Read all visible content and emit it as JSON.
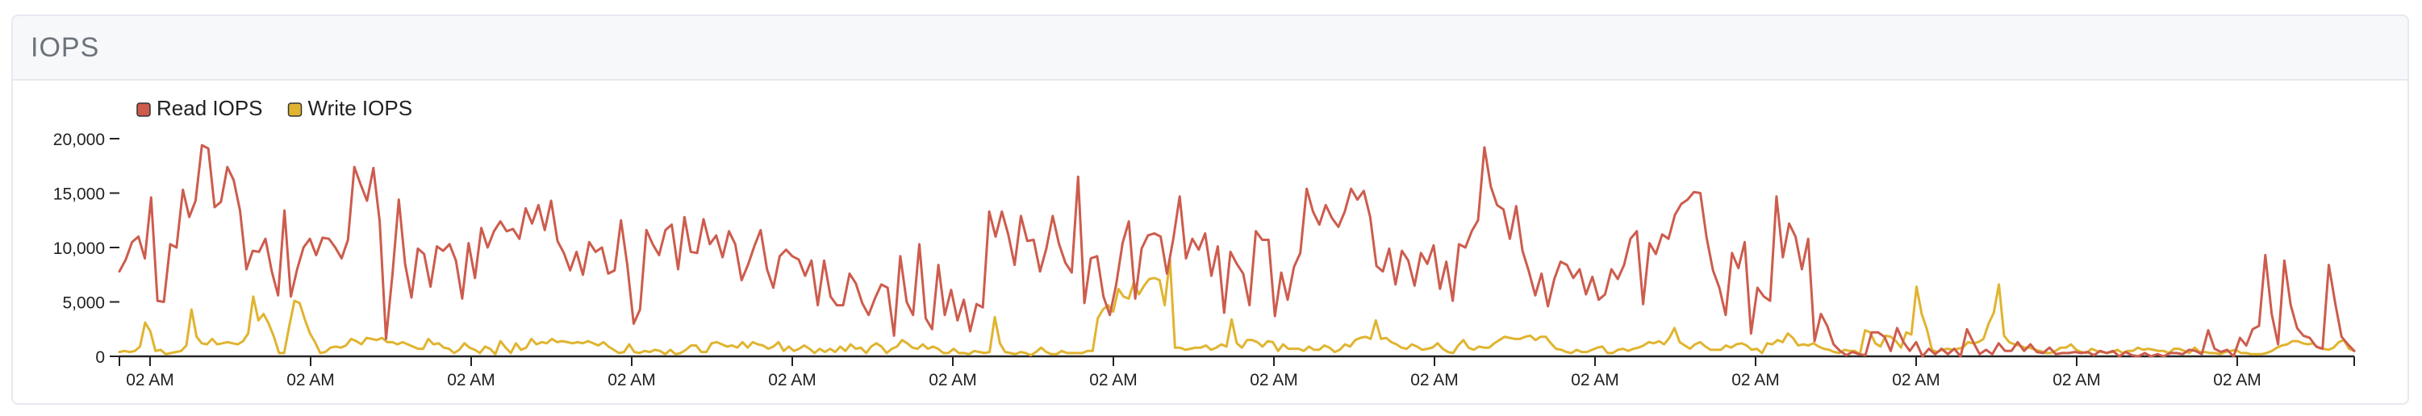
{
  "panel": {
    "title": "IOPS"
  },
  "chart_data": {
    "type": "line",
    "title": "",
    "xlabel": "",
    "ylabel": "",
    "ylim": [
      0,
      20000
    ],
    "yticks": [
      0,
      5000,
      10000,
      15000,
      20000
    ],
    "ytick_labels": [
      "0",
      "5,000",
      "10,000",
      "15,000",
      "20,000"
    ],
    "xtick_labels": [
      "02 AM",
      "02 AM",
      "02 AM",
      "02 AM",
      "02 AM",
      "02 AM",
      "02 AM",
      "02 AM",
      "02 AM",
      "02 AM",
      "02 AM",
      "02 AM",
      "02 AM",
      "02 AM"
    ],
    "legend_position": "top-left",
    "grid": false,
    "series": [
      {
        "name": "Read IOPS",
        "color": "#cd5c4d",
        "values": [
          7800,
          8900,
          10500,
          11000,
          9000,
          14600,
          5100,
          5000,
          10300,
          10000,
          15300,
          12800,
          14300,
          19400,
          19100,
          13700,
          14200,
          17400,
          16200,
          13400,
          8000,
          9700,
          9600,
          10800,
          7800,
          5600,
          13400,
          5500,
          8000,
          10000,
          10800,
          9300,
          10900,
          10800,
          10000,
          9000,
          10700,
          17400,
          15800,
          14300,
          17300,
          12400,
          1600,
          7500,
          14400,
          8500,
          5400,
          9900,
          9400,
          6400,
          10100,
          9700,
          10300,
          8800,
          5300,
          10400,
          7200,
          11800,
          10000,
          11500,
          12400,
          11500,
          11700,
          10800,
          13600,
          12200,
          13900,
          11600,
          14300,
          10600,
          9500,
          7900,
          9600,
          7500,
          10500,
          9600,
          10000,
          7600,
          7900,
          12500,
          8400,
          3000,
          4300,
          11600,
          10300,
          9300,
          11600,
          12100,
          8000,
          12800,
          9600,
          9500,
          12600,
          10300,
          11100,
          9100,
          11500,
          10300,
          7000,
          8400,
          10100,
          11600,
          8000,
          6300,
          9200,
          9800,
          9200,
          8900,
          7400,
          8800,
          4700,
          8800,
          5500,
          4700,
          4700,
          7600,
          6700,
          4900,
          3800,
          5300,
          6600,
          6300,
          1900,
          9200,
          5000,
          3800,
          10300,
          3500,
          2500,
          8400,
          3800,
          6100,
          3300,
          5200,
          2300,
          4800,
          4500,
          13300,
          11000,
          13300,
          11200,
          8400,
          12900,
          10600,
          10700,
          7800,
          9900,
          12900,
          10300,
          8600,
          7700,
          16500,
          4900,
          9000,
          9200,
          5500,
          3800,
          6600,
          10400,
          12400,
          5300,
          9900,
          11100,
          11300,
          11000,
          7600,
          10800,
          14700,
          9000,
          10800,
          9800,
          11300,
          7400,
          10100,
          4000,
          9600,
          8500,
          7600,
          4700,
          11500,
          10700,
          10700,
          3700,
          7700,
          5200,
          8200,
          9500,
          15400,
          13300,
          12100,
          13900,
          12700,
          11900,
          13300,
          15400,
          14400,
          15200,
          12800,
          8300,
          7800,
          9900,
          6600,
          9700,
          8800,
          6500,
          9500,
          8500,
          10200,
          6200,
          8700,
          5100,
          10300,
          10000,
          11500,
          12500,
          19200,
          15600,
          13900,
          13500,
          10800,
          13800,
          9700,
          7800,
          5600,
          7600,
          4600,
          7100,
          8700,
          8400,
          7200,
          8000,
          5700,
          7300,
          5200,
          5700,
          8000,
          7100,
          8400,
          10800,
          11500,
          4800,
          10400,
          9400,
          11200,
          10800,
          13000,
          14000,
          14400,
          15100,
          15000,
          10900,
          7900,
          6300,
          3800,
          9500,
          8100,
          10500,
          2100,
          6300,
          5500,
          5100,
          14700,
          9100,
          12200,
          11000,
          8000,
          10800,
          1400,
          3900,
          2800,
          1100,
          500,
          100,
          400,
          200,
          100,
          2200,
          2200,
          1800,
          500,
          2600,
          1300,
          500,
          1300,
          0,
          700,
          200,
          700,
          200,
          700,
          0,
          2500,
          1300,
          200,
          600,
          200,
          1200,
          500,
          500,
          1300,
          500,
          1100,
          400,
          300,
          800,
          200,
          300,
          300,
          400,
          300,
          400,
          100,
          500,
          300,
          500,
          0,
          400,
          100,
          0,
          300,
          0,
          200,
          0,
          300,
          300,
          200,
          600,
          500,
          200,
          2400,
          700,
          400,
          600,
          0,
          1700,
          1000,
          2500,
          2800,
          9300,
          3900,
          1100,
          8800,
          4700,
          2600,
          1900,
          1700,
          900,
          700,
          8400,
          4900,
          1800,
          1100,
          500
        ]
      },
      {
        "name": "Write IOPS",
        "color": "#e0b430",
        "values": [
          400,
          500,
          400,
          500,
          900,
          3100,
          2300,
          500,
          600,
          200,
          300,
          400,
          500,
          1000,
          4300,
          1800,
          1200,
          1100,
          1600,
          1100,
          1200,
          1300,
          1200,
          1100,
          1400,
          2100,
          5500,
          3300,
          3900,
          3000,
          1800,
          300,
          300,
          2800,
          5100,
          4900,
          3400,
          2100,
          1300,
          300,
          400,
          800,
          900,
          800,
          1000,
          1600,
          1400,
          1100,
          1700,
          1600,
          1500,
          1700,
          1300,
          1300,
          1100,
          1300,
          1100,
          900,
          700,
          700,
          1600,
          1100,
          1200,
          800,
          700,
          300,
          600,
          1200,
          800,
          600,
          300,
          900,
          700,
          200,
          1400,
          800,
          300,
          1200,
          600,
          800,
          1600,
          1100,
          1300,
          1200,
          1600,
          1300,
          1400,
          1300,
          1200,
          1300,
          1200,
          1400,
          1200,
          1000,
          1300,
          900,
          600,
          300,
          400,
          1100,
          400,
          300,
          500,
          400,
          600,
          500,
          200,
          600,
          200,
          300,
          600,
          1000,
          1000,
          400,
          400,
          1200,
          1300,
          1100,
          900,
          1000,
          800,
          1300,
          800,
          1300,
          1100,
          1000,
          700,
          900,
          1300,
          500,
          900,
          500,
          700,
          1000,
          700,
          300,
          700,
          400,
          700,
          400,
          900,
          500,
          1100,
          700,
          800,
          300,
          900,
          1200,
          900,
          300,
          700,
          900,
          1500,
          1200,
          800,
          700,
          1100,
          700,
          900,
          700,
          300,
          300,
          700,
          300,
          300,
          200,
          500,
          400,
          300,
          400,
          3600,
          1200,
          400,
          300,
          200,
          400,
          300,
          100,
          400,
          800,
          400,
          200,
          200,
          500,
          300,
          300,
          300,
          300,
          500,
          500,
          3500,
          4300,
          4700,
          4100,
          6200,
          5500,
          5300,
          6800,
          5700,
          6500,
          7100,
          7200,
          7000,
          4700,
          9000,
          800,
          800,
          600,
          700,
          800,
          800,
          1000,
          600,
          800,
          1100,
          900,
          3400,
          1200,
          800,
          1500,
          1500,
          1300,
          900,
          1400,
          1300,
          500,
          1100,
          700,
          700,
          700,
          500,
          900,
          600,
          600,
          1000,
          800,
          400,
          600,
          1100,
          900,
          1500,
          1700,
          1800,
          1600,
          3300,
          1600,
          1700,
          1300,
          1100,
          800,
          700,
          1100,
          900,
          600,
          700,
          800,
          1200,
          700,
          400,
          300,
          1000,
          1500,
          800,
          600,
          900,
          800,
          800,
          1200,
          1500,
          1800,
          1700,
          1600,
          1600,
          1800,
          1900,
          1500,
          1800,
          1800,
          1200,
          700,
          600,
          400,
          300,
          600,
          400,
          400,
          600,
          800,
          900,
          300,
          300,
          600,
          700,
          500,
          700,
          800,
          1000,
          1300,
          1200,
          1400,
          1100,
          1700,
          2600,
          1300,
          1000,
          700,
          1100,
          1300,
          900,
          600,
          600,
          600,
          1000,
          800,
          1100,
          1200,
          1000,
          600,
          700,
          300,
          1200,
          1100,
          1500,
          1300,
          2100,
          1700,
          1000,
          1100,
          1000,
          1200,
          900,
          700,
          600,
          400,
          300,
          600,
          500,
          500,
          200,
          2400,
          2200,
          1200,
          900,
          1900,
          1800,
          1400,
          800,
          2200,
          2000,
          6400,
          3900,
          2500,
          600,
          400,
          600,
          700,
          600,
          700,
          800,
          1300,
          1200,
          1300,
          1600,
          3000,
          4000,
          6600,
          1900,
          1300,
          1100,
          1000,
          800,
          800,
          600,
          500,
          300,
          300,
          500,
          800,
          800,
          1100,
          600,
          400,
          300,
          700,
          500,
          400,
          300,
          400,
          600,
          300,
          500,
          500,
          800,
          600,
          700,
          600,
          500,
          500,
          300,
          700,
          700,
          500,
          300,
          800,
          400,
          400,
          300,
          300,
          200,
          400,
          500,
          600,
          300,
          300,
          200,
          200,
          200,
          300,
          500,
          800,
          1000,
          1100,
          1400,
          1400,
          1200,
          1100,
          1200,
          800,
          700,
          600,
          800,
          1300,
          1500,
          700,
          500
        ]
      }
    ]
  }
}
